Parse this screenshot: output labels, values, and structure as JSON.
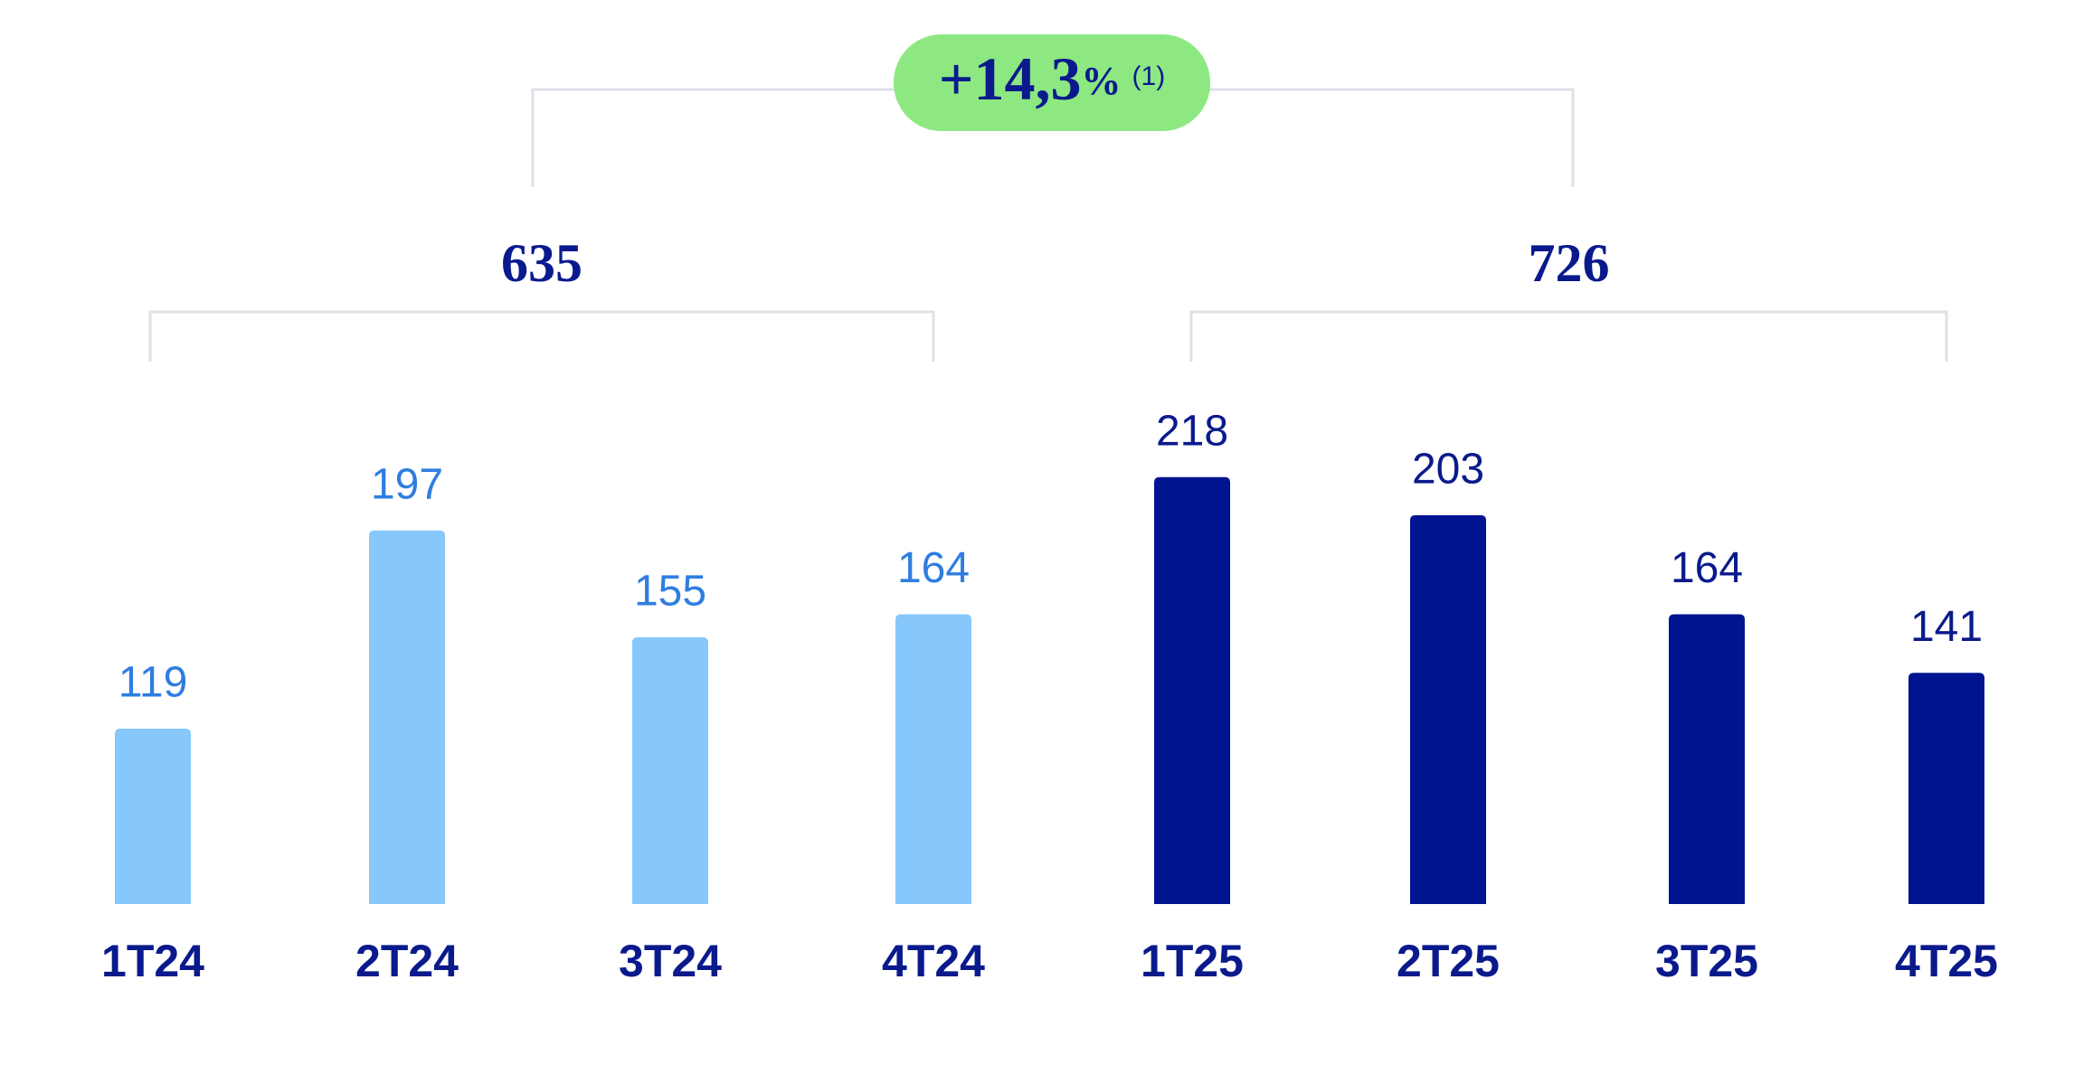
{
  "chart_data": {
    "type": "bar",
    "categories": [
      "1T24",
      "2T24",
      "3T24",
      "4T24",
      "1T25",
      "2T25",
      "3T25",
      "4T25"
    ],
    "series": [
      {
        "color": "#87c8fc",
        "label_color": "#2f7de1",
        "values": [
          119,
          197,
          155,
          164,
          null,
          null,
          null,
          null
        ]
      },
      {
        "color": "#001391",
        "label_color": "#0a1a8c",
        "values": [
          null,
          null,
          null,
          null,
          218,
          203,
          164,
          141
        ]
      }
    ],
    "ylim": [
      50,
      230
    ],
    "group_totals": [
      635,
      726
    ],
    "growth": {
      "text": "+14,3",
      "unit": "%",
      "note": "(1)"
    }
  }
}
